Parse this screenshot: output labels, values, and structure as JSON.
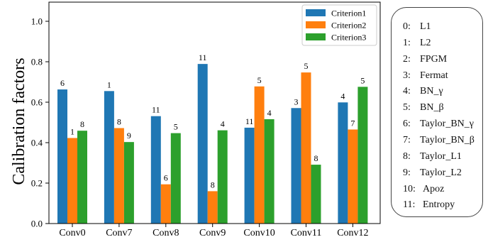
{
  "chart_data": {
    "type": "bar",
    "ylabel": "Calibration factors",
    "ylim": [
      0.0,
      1.0
    ],
    "yticks": [
      "0.0",
      "0.2",
      "0.4",
      "0.6",
      "0.8",
      "1.0"
    ],
    "categories": [
      "Conv0",
      "Conv7",
      "Conv8",
      "Conv9",
      "Conv10",
      "Conv11",
      "Conv12"
    ],
    "legend_position": "top-right",
    "grid": false,
    "series": [
      {
        "name": "Criterion1",
        "color": "#1f77b4",
        "values": [
          0.663,
          0.655,
          0.531,
          0.789,
          0.474,
          0.571,
          0.599
        ],
        "labels": [
          "6",
          "1",
          "11",
          "11",
          "11",
          "3",
          "4"
        ]
      },
      {
        "name": "Criterion2",
        "color": "#ff7f0e",
        "values": [
          0.423,
          0.472,
          0.194,
          0.16,
          0.678,
          0.747,
          0.465
        ],
        "labels": [
          "1",
          "8",
          "6",
          "8",
          "5",
          "5",
          "7"
        ]
      },
      {
        "name": "Criterion3",
        "color": "#2ca02c",
        "values": [
          0.459,
          0.403,
          0.447,
          0.461,
          0.516,
          0.291,
          0.676
        ],
        "labels": [
          "8",
          "9",
          "5",
          "4",
          "4",
          "8",
          "5"
        ]
      }
    ]
  },
  "code_legend": [
    {
      "index": "0:",
      "name": "L1"
    },
    {
      "index": "1:",
      "name": "L2"
    },
    {
      "index": "2:",
      "name": "FPGM"
    },
    {
      "index": "3:",
      "name": "Fermat"
    },
    {
      "index": "4:",
      "name": "BN_γ"
    },
    {
      "index": "5:",
      "name": "BN_β"
    },
    {
      "index": "6:",
      "name": "Taylor_BN_γ"
    },
    {
      "index": "7:",
      "name": "Taylor_BN_β"
    },
    {
      "index": "8:",
      "name": "Taylor_L1"
    },
    {
      "index": "9:",
      "name": "Taylor_L2"
    },
    {
      "index": "10:",
      "name": "Apoz"
    },
    {
      "index": "11:",
      "name": "Entropy"
    }
  ]
}
